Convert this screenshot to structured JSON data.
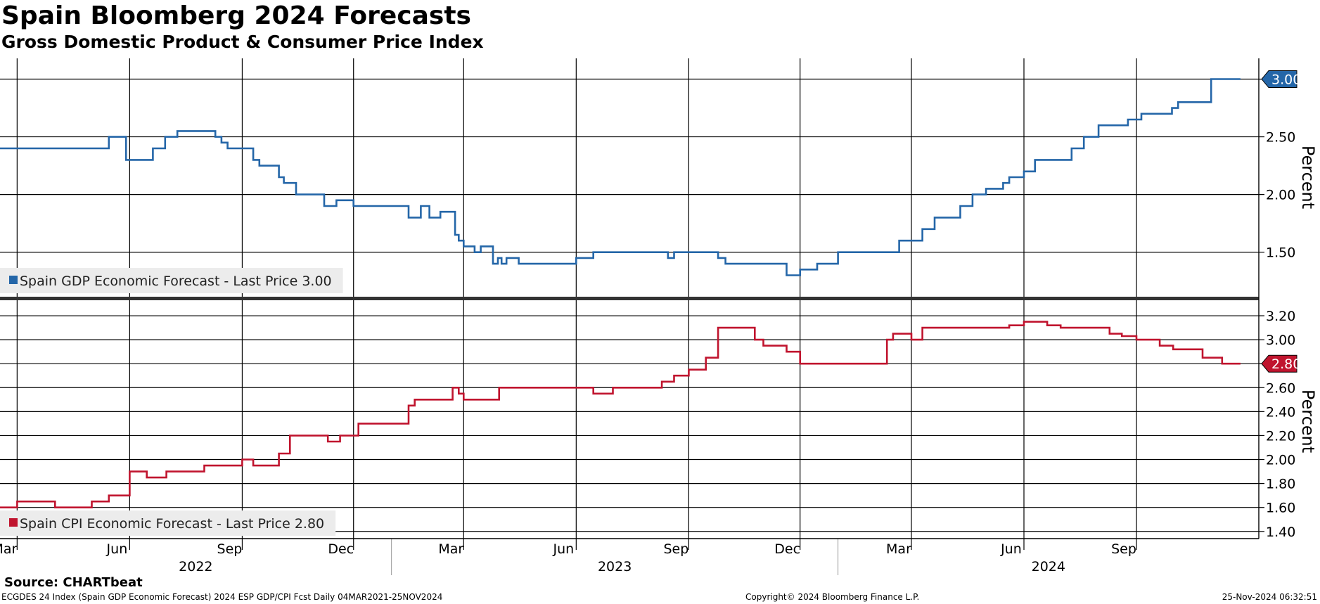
{
  "title": "Spain Bloomberg 2024 Forecasts",
  "subtitle": "Gross Domestic Product & Consumer Price Index",
  "source": "Source: CHARTbeat",
  "footer": {
    "description": "ECGDES 24 Index (Spain GDP Economic Forecast) 2024 ESP GDP/CPI Fcst  Daily 04MAR2021-25NOV2024",
    "copyright": "Copyright© 2024 Bloomberg Finance L.P.",
    "date": "25-Nov-2024 06:32:51"
  },
  "chart_data": [
    {
      "type": "line",
      "panel": "top",
      "ylabel": "Percent",
      "ylim": [
        1.12,
        3.18
      ],
      "yticks": [
        "1.50",
        "2.00",
        "2.50"
      ],
      "grid": true,
      "legend": "Spain GDP Economic Forecast - Last Price 3.00",
      "legend_position": "bottom-left",
      "last_value_label": "3.00",
      "color": "#2466a8",
      "x": [
        "2022-02-15",
        "2022-04-11",
        "2022-05-15",
        "2022-05-16",
        "2022-05-25",
        "2022-05-29",
        "2022-06-01",
        "2022-06-20",
        "2022-06-22",
        "2022-06-27",
        "2022-06-30",
        "2022-07-05",
        "2022-07-10",
        "2022-08-10",
        "2022-08-15",
        "2022-08-20",
        "2022-09-10",
        "2022-09-15",
        "2022-10-01",
        "2022-10-05",
        "2022-10-15",
        "2022-10-22",
        "2022-11-07",
        "2022-11-10",
        "2022-11-17",
        "2022-12-01",
        "2023-01-10",
        "2023-01-15",
        "2023-01-25",
        "2023-02-01",
        "2023-02-10",
        "2023-02-15",
        "2023-02-22",
        "2023-02-25",
        "2023-03-01",
        "2023-03-10",
        "2023-03-15",
        "2023-03-25",
        "2023-03-29",
        "2023-04-01",
        "2023-04-05",
        "2023-04-15",
        "2023-05-01",
        "2023-06-01",
        "2023-06-15",
        "2023-07-01",
        "2023-08-01",
        "2023-08-15",
        "2023-08-20",
        "2023-09-15",
        "2023-09-25",
        "2023-10-01",
        "2023-10-10",
        "2023-10-25",
        "2023-11-01",
        "2023-11-20",
        "2023-11-25",
        "2023-12-01",
        "2023-12-15",
        "2024-01-01",
        "2024-01-15",
        "2024-02-01",
        "2024-02-20",
        "2024-03-01",
        "2024-03-10",
        "2024-03-20",
        "2024-04-01",
        "2024-04-10",
        "2024-04-20",
        "2024-05-01",
        "2024-05-15",
        "2024-05-20",
        "2024-06-01",
        "2024-06-10",
        "2024-06-15",
        "2024-07-01",
        "2024-07-10",
        "2024-07-20",
        "2024-08-01",
        "2024-08-10",
        "2024-08-15",
        "2024-08-25",
        "2024-09-05",
        "2024-09-10",
        "2024-09-20",
        "2024-09-30",
        "2024-10-05",
        "2024-10-25",
        "2024-11-01",
        "2024-11-25"
      ],
      "values": [
        2.4,
        2.4,
        2.5,
        2.5,
        2.5,
        2.3,
        2.3,
        2.4,
        2.4,
        2.4,
        2.5,
        2.5,
        2.55,
        2.5,
        2.45,
        2.4,
        2.3,
        2.25,
        2.15,
        2.1,
        2.0,
        2.0,
        1.9,
        1.9,
        1.95,
        1.9,
        1.9,
        1.8,
        1.9,
        1.8,
        1.85,
        1.85,
        1.65,
        1.6,
        1.55,
        1.5,
        1.55,
        1.4,
        1.45,
        1.4,
        1.45,
        1.4,
        1.4,
        1.45,
        1.5,
        1.5,
        1.5,
        1.45,
        1.5,
        1.5,
        1.45,
        1.4,
        1.4,
        1.4,
        1.4,
        1.3,
        1.3,
        1.35,
        1.4,
        1.5,
        1.5,
        1.5,
        1.6,
        1.6,
        1.7,
        1.8,
        1.8,
        1.9,
        2.0,
        2.05,
        2.1,
        2.15,
        2.2,
        2.3,
        2.3,
        2.3,
        2.4,
        2.5,
        2.6,
        2.6,
        2.6,
        2.65,
        2.7,
        2.7,
        2.7,
        2.75,
        2.8,
        2.8,
        3.0,
        3.0
      ]
    },
    {
      "type": "line",
      "panel": "bottom",
      "ylabel": "Percent",
      "ylim": [
        1.34,
        3.3
      ],
      "yticks": [
        "1.40",
        "1.60",
        "1.80",
        "2.00",
        "2.20",
        "2.40",
        "2.60",
        "3.00",
        "3.20"
      ],
      "grid": true,
      "legend": "Spain CPI Economic Forecast - Last Price 2.80",
      "legend_position": "bottom-left",
      "last_value_label": "2.80",
      "color": "#c0142e",
      "x": [
        "2022-02-15",
        "2022-03-01",
        "2022-03-30",
        "2022-04-01",
        "2022-04-25",
        "2022-05-01",
        "2022-05-15",
        "2022-06-01",
        "2022-06-15",
        "2022-07-01",
        "2022-08-01",
        "2022-08-15",
        "2022-09-01",
        "2022-09-10",
        "2022-09-15",
        "2022-10-01",
        "2022-10-10",
        "2022-10-20",
        "2022-11-10",
        "2022-11-20",
        "2022-12-05",
        "2022-12-20",
        "2023-01-15",
        "2023-01-20",
        "2023-02-01",
        "2023-02-10",
        "2023-02-20",
        "2023-02-25",
        "2023-03-01",
        "2023-03-10",
        "2023-03-30",
        "2023-04-01",
        "2023-05-01",
        "2023-06-01",
        "2023-06-15",
        "2023-07-01",
        "2023-07-10",
        "2023-08-01",
        "2023-08-10",
        "2023-08-20",
        "2023-09-01",
        "2023-09-15",
        "2023-09-25",
        "2023-10-01",
        "2023-10-20",
        "2023-10-25",
        "2023-11-01",
        "2023-11-10",
        "2023-11-20",
        "2023-12-01",
        "2024-01-01",
        "2024-01-20",
        "2024-02-10",
        "2024-02-15",
        "2024-03-01",
        "2024-03-10",
        "2024-04-01",
        "2024-05-01",
        "2024-05-20",
        "2024-06-01",
        "2024-06-10",
        "2024-06-20",
        "2024-07-01",
        "2024-07-20",
        "2024-08-10",
        "2024-08-20",
        "2024-09-01",
        "2024-09-20",
        "2024-10-01",
        "2024-10-20",
        "2024-10-25",
        "2024-11-01",
        "2024-11-10",
        "2024-11-25"
      ],
      "values": [
        1.6,
        1.65,
        1.65,
        1.6,
        1.6,
        1.65,
        1.7,
        1.9,
        1.85,
        1.9,
        1.95,
        1.95,
        2.0,
        1.95,
        1.95,
        2.05,
        2.2,
        2.2,
        2.15,
        2.2,
        2.3,
        2.3,
        2.45,
        2.5,
        2.5,
        2.5,
        2.6,
        2.55,
        2.5,
        2.5,
        2.6,
        2.6,
        2.6,
        2.6,
        2.55,
        2.6,
        2.6,
        2.6,
        2.65,
        2.7,
        2.75,
        2.85,
        3.1,
        3.1,
        3.1,
        3.0,
        2.95,
        2.95,
        2.9,
        2.8,
        2.8,
        2.8,
        3.0,
        3.05,
        3.0,
        3.1,
        3.1,
        3.1,
        3.12,
        3.15,
        3.15,
        3.12,
        3.1,
        3.1,
        3.05,
        3.03,
        3.0,
        2.95,
        2.92,
        2.92,
        2.85,
        2.85,
        2.8,
        2.8
      ]
    }
  ],
  "x_axis": {
    "months": [
      {
        "label": "Mar",
        "date": "2022-03-01"
      },
      {
        "label": "Jun",
        "date": "2022-06-01"
      },
      {
        "label": "Sep",
        "date": "2022-09-01"
      },
      {
        "label": "Dec",
        "date": "2022-12-01"
      },
      {
        "label": "Mar",
        "date": "2023-03-01"
      },
      {
        "label": "Jun",
        "date": "2023-06-01"
      },
      {
        "label": "Sep",
        "date": "2023-09-01"
      },
      {
        "label": "Dec",
        "date": "2023-12-01"
      },
      {
        "label": "Mar",
        "date": "2024-03-01"
      },
      {
        "label": "Jun",
        "date": "2024-06-01"
      },
      {
        "label": "Sep",
        "date": "2024-09-01"
      }
    ],
    "years": [
      "2022",
      "2023",
      "2024"
    ],
    "range": [
      "2022-02-15",
      "2024-12-10"
    ]
  }
}
